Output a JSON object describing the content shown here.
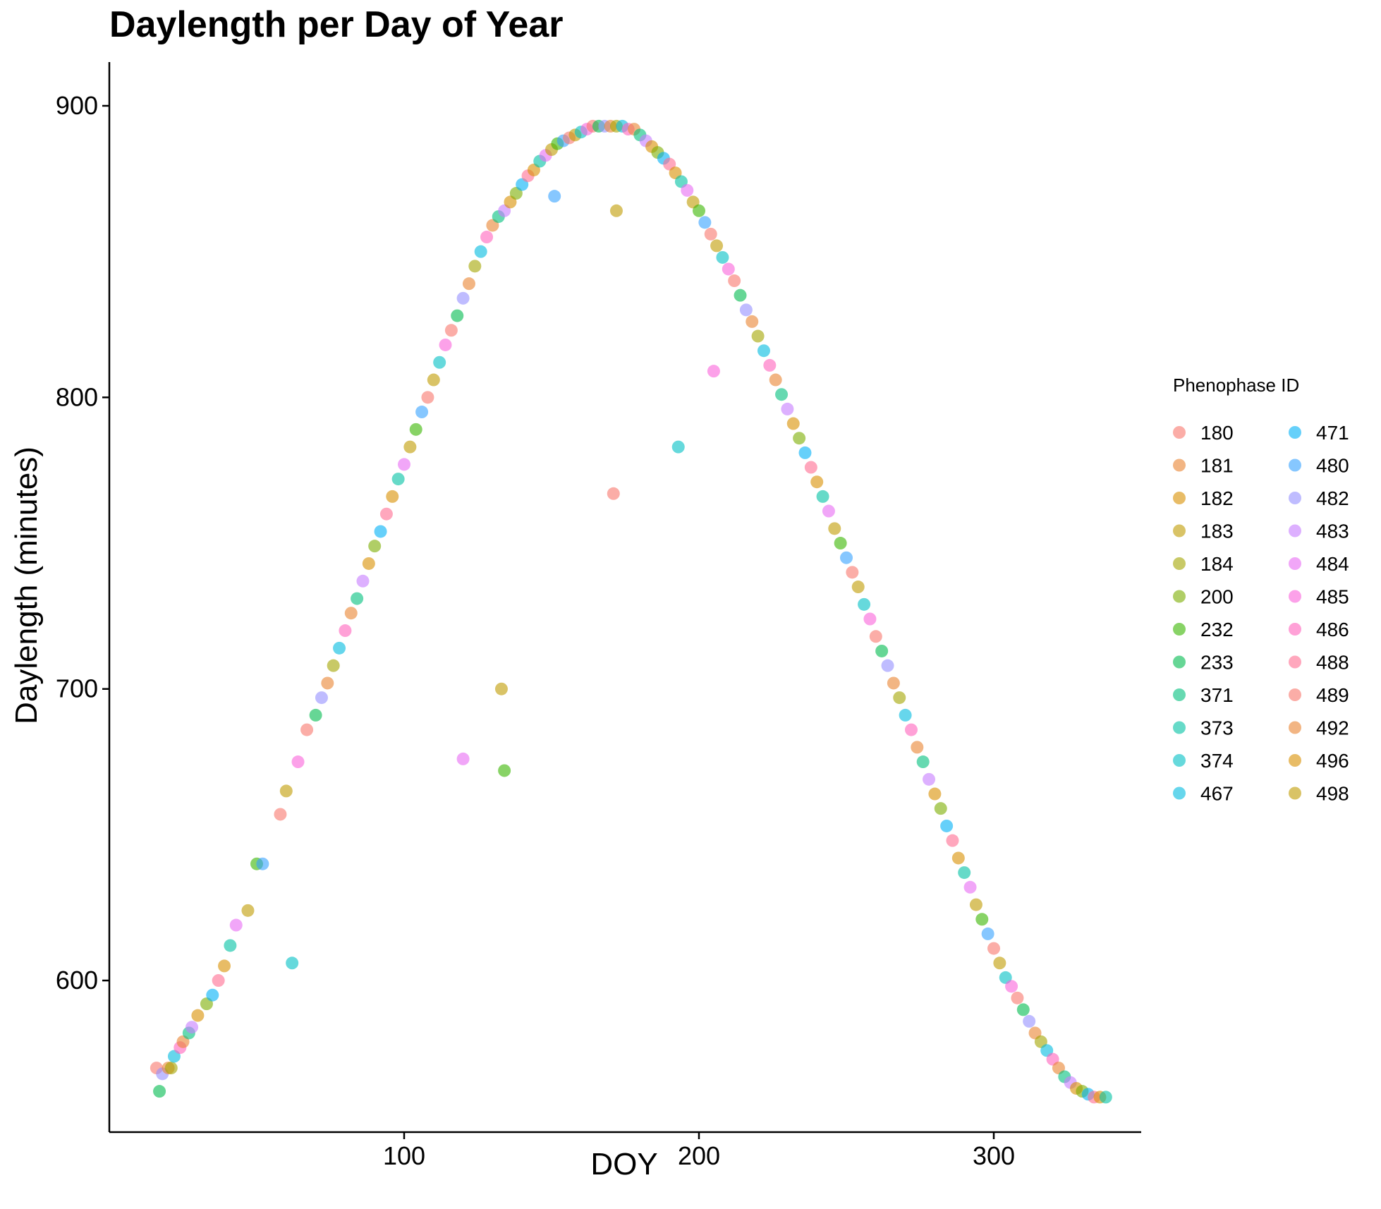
{
  "chart_data": {
    "type": "scatter",
    "title": "Daylength per Day of Year",
    "xlabel": "DOY",
    "ylabel": "Daylength (minutes)",
    "xlim": [
      0,
      350
    ],
    "ylim": [
      548,
      915
    ],
    "xticks": [
      100,
      200,
      300
    ],
    "yticks": [
      600,
      700,
      800,
      900
    ],
    "grid": false,
    "legend": {
      "title": "Phenophase ID",
      "placement": "right",
      "columns": 2,
      "entries": [
        {
          "label": "180",
          "color": "#F8766D"
        },
        {
          "label": "181",
          "color": "#EA8331"
        },
        {
          "label": "182",
          "color": "#D89000"
        },
        {
          "label": "183",
          "color": "#C09B00"
        },
        {
          "label": "184",
          "color": "#A3A500"
        },
        {
          "label": "200",
          "color": "#7CAE00"
        },
        {
          "label": "232",
          "color": "#39B600"
        },
        {
          "label": "233",
          "color": "#00BB4E"
        },
        {
          "label": "371",
          "color": "#00BF7D"
        },
        {
          "label": "373",
          "color": "#00C1A3"
        },
        {
          "label": "374",
          "color": "#00BFC4"
        },
        {
          "label": "467",
          "color": "#00BAE0"
        },
        {
          "label": "471",
          "color": "#00B0F6"
        },
        {
          "label": "480",
          "color": "#35A2FF"
        },
        {
          "label": "482",
          "color": "#9590FF"
        },
        {
          "label": "483",
          "color": "#C77CFF"
        },
        {
          "label": "484",
          "color": "#E76BF3"
        },
        {
          "label": "485",
          "color": "#FA62DB"
        },
        {
          "label": "486",
          "color": "#FF62BC"
        },
        {
          "label": "488",
          "color": "#FF6C91"
        },
        {
          "label": "489",
          "color": "#F8766D"
        },
        {
          "label": "492",
          "color": "#EA8331"
        },
        {
          "label": "496",
          "color": "#D89000"
        },
        {
          "label": "498",
          "color": "#C09B00"
        }
      ]
    },
    "points": [
      [
        16,
        570
      ],
      [
        17,
        562
      ],
      [
        18,
        568
      ],
      [
        20,
        570
      ],
      [
        21,
        570
      ],
      [
        22,
        574
      ],
      [
        24,
        577
      ],
      [
        25,
        579
      ],
      [
        27,
        582
      ],
      [
        28,
        584
      ],
      [
        30,
        588
      ],
      [
        33,
        592
      ],
      [
        35,
        595
      ],
      [
        37,
        600
      ],
      [
        39,
        605
      ],
      [
        41,
        612
      ],
      [
        43,
        619
      ],
      [
        47,
        624
      ],
      [
        50,
        640
      ],
      [
        52,
        640
      ],
      [
        58,
        657
      ],
      [
        60,
        665
      ],
      [
        62,
        606
      ],
      [
        64,
        675
      ],
      [
        67,
        686
      ],
      [
        70,
        691
      ],
      [
        72,
        697
      ],
      [
        74,
        702
      ],
      [
        76,
        708
      ],
      [
        78,
        714
      ],
      [
        80,
        720
      ],
      [
        82,
        726
      ],
      [
        84,
        731
      ],
      [
        86,
        737
      ],
      [
        88,
        743
      ],
      [
        90,
        749
      ],
      [
        92,
        754
      ],
      [
        94,
        760
      ],
      [
        96,
        766
      ],
      [
        98,
        772
      ],
      [
        100,
        777
      ],
      [
        102,
        783
      ],
      [
        104,
        789
      ],
      [
        106,
        795
      ],
      [
        108,
        800
      ],
      [
        110,
        806
      ],
      [
        112,
        812
      ],
      [
        114,
        818
      ],
      [
        116,
        823
      ],
      [
        118,
        828
      ],
      [
        120,
        834
      ],
      [
        122,
        839
      ],
      [
        124,
        845
      ],
      [
        126,
        850
      ],
      [
        128,
        855
      ],
      [
        130,
        859
      ],
      [
        132,
        862
      ],
      [
        134,
        864
      ],
      [
        136,
        867
      ],
      [
        138,
        870
      ],
      [
        140,
        873
      ],
      [
        142,
        876
      ],
      [
        144,
        878
      ],
      [
        146,
        881
      ],
      [
        148,
        883
      ],
      [
        150,
        885
      ],
      [
        152,
        887
      ],
      [
        154,
        888
      ],
      [
        156,
        889
      ],
      [
        158,
        890
      ],
      [
        160,
        891
      ],
      [
        162,
        892
      ],
      [
        164,
        893
      ],
      [
        166,
        893
      ],
      [
        168,
        893
      ],
      [
        170,
        893
      ],
      [
        172,
        893
      ],
      [
        174,
        893
      ],
      [
        176,
        892
      ],
      [
        178,
        892
      ],
      [
        180,
        890
      ],
      [
        182,
        888
      ],
      [
        184,
        886
      ],
      [
        186,
        884
      ],
      [
        188,
        882
      ],
      [
        190,
        880
      ],
      [
        192,
        877
      ],
      [
        194,
        874
      ],
      [
        196,
        871
      ],
      [
        198,
        867
      ],
      [
        200,
        864
      ],
      [
        202,
        860
      ],
      [
        204,
        856
      ],
      [
        206,
        852
      ],
      [
        208,
        848
      ],
      [
        210,
        844
      ],
      [
        212,
        840
      ],
      [
        214,
        835
      ],
      [
        216,
        830
      ],
      [
        218,
        826
      ],
      [
        220,
        821
      ],
      [
        222,
        816
      ],
      [
        224,
        811
      ],
      [
        226,
        806
      ],
      [
        228,
        801
      ],
      [
        230,
        796
      ],
      [
        232,
        791
      ],
      [
        234,
        786
      ],
      [
        236,
        781
      ],
      [
        238,
        776
      ],
      [
        240,
        771
      ],
      [
        242,
        766
      ],
      [
        244,
        761
      ],
      [
        246,
        755
      ],
      [
        248,
        750
      ],
      [
        250,
        745
      ],
      [
        252,
        740
      ],
      [
        254,
        735
      ],
      [
        256,
        729
      ],
      [
        258,
        724
      ],
      [
        260,
        718
      ],
      [
        262,
        713
      ],
      [
        264,
        708
      ],
      [
        266,
        702
      ],
      [
        268,
        697
      ],
      [
        270,
        691
      ],
      [
        272,
        686
      ],
      [
        274,
        680
      ],
      [
        276,
        675
      ],
      [
        278,
        669
      ],
      [
        280,
        664
      ],
      [
        282,
        659
      ],
      [
        284,
        653
      ],
      [
        286,
        648
      ],
      [
        288,
        642
      ],
      [
        290,
        637
      ],
      [
        292,
        632
      ],
      [
        294,
        626
      ],
      [
        296,
        621
      ],
      [
        298,
        616
      ],
      [
        300,
        611
      ],
      [
        302,
        606
      ],
      [
        304,
        601
      ],
      [
        306,
        598
      ],
      [
        308,
        594
      ],
      [
        310,
        590
      ],
      [
        312,
        586
      ],
      [
        314,
        582
      ],
      [
        316,
        579
      ],
      [
        318,
        576
      ],
      [
        320,
        573
      ],
      [
        322,
        570
      ],
      [
        324,
        567
      ],
      [
        326,
        565
      ],
      [
        328,
        563
      ],
      [
        330,
        562
      ],
      [
        332,
        561
      ],
      [
        334,
        560
      ],
      [
        336,
        560
      ],
      [
        338,
        560
      ],
      [
        120,
        676
      ],
      [
        133,
        700
      ],
      [
        134,
        672
      ],
      [
        151,
        869
      ],
      [
        171,
        767
      ],
      [
        172,
        864
      ],
      [
        193,
        783
      ],
      [
        205,
        809
      ]
    ]
  }
}
